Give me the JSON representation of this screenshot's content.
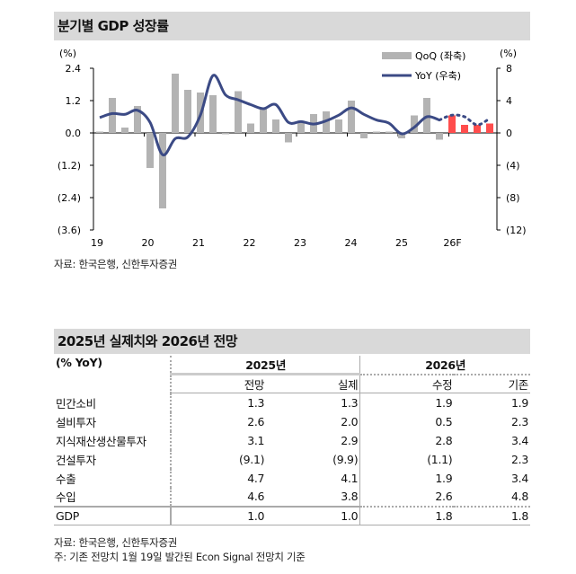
{
  "title1": "분기별 GDP 성장률",
  "source1": "자료: 한국은행, 신한투자증권",
  "chart_data": {
    "type": "bar+line",
    "title": "분기별 GDP 성장률",
    "left_unit": "(%)",
    "right_unit": "(%)",
    "left_ylim": [
      -3.6,
      2.4
    ],
    "left_ticks": [
      "2.4",
      "1.2",
      "0.0",
      "(1.2)",
      "(2.4)",
      "(3.6)"
    ],
    "right_ylim": [
      -12,
      8
    ],
    "right_ticks": [
      "8",
      "4",
      "0",
      "(4)",
      "(8)",
      "(12)"
    ],
    "x_ticks": [
      "19",
      "20",
      "21",
      "22",
      "23",
      "24",
      "25",
      "26F"
    ],
    "legend": {
      "placement": "top-right",
      "qoq": "QoQ (좌축)",
      "yoy": "YoY (우축)"
    },
    "colors": {
      "qoq": "#b3b3b3",
      "forecast": "#ff4d4d",
      "yoy": "#3b4a85"
    },
    "quarters": [
      "19Q1",
      "19Q2",
      "19Q3",
      "19Q4",
      "20Q1",
      "20Q2",
      "20Q3",
      "20Q4",
      "21Q1",
      "21Q2",
      "21Q3",
      "21Q4",
      "22Q1",
      "22Q2",
      "22Q3",
      "22Q4",
      "23Q1",
      "23Q2",
      "23Q3",
      "23Q4",
      "24Q1",
      "24Q2",
      "24Q3",
      "24Q4",
      "25Q1",
      "25Q2",
      "25Q3",
      "25Q4",
      "26Q1",
      "26Q2",
      "26Q3",
      "26Q4"
    ],
    "series": [
      {
        "name": "QoQ (좌축)",
        "axis": "left",
        "values": [
          0.05,
          1.3,
          0.2,
          1.0,
          -1.3,
          -2.8,
          2.2,
          1.6,
          1.5,
          1.4,
          -0.05,
          1.55,
          0.35,
          0.9,
          0.5,
          -0.35,
          0.4,
          0.7,
          0.8,
          0.5,
          1.2,
          -0.2,
          0.05,
          0.05,
          -0.2,
          0.65,
          1.3,
          -0.25,
          0.65,
          0.3,
          0.3,
          0.35
        ],
        "forecast_from": "26Q1"
      },
      {
        "name": "YoY (우축)",
        "axis": "right",
        "values": [
          1.9,
          2.4,
          2.3,
          2.8,
          1.3,
          -2.7,
          -0.7,
          -0.5,
          2.2,
          7.1,
          4.7,
          4.1,
          3.5,
          3.0,
          3.5,
          1.3,
          1.4,
          1.1,
          1.5,
          2.2,
          3.1,
          2.3,
          1.6,
          1.2,
          -0.1,
          0.7,
          2.0,
          1.6,
          2.2,
          2.0,
          1.0,
          1.8
        ],
        "forecast_from": "26Q1"
      }
    ]
  },
  "title2": "2025년 실제치와 2026년 전망",
  "table": {
    "unit": "(% YoY)",
    "groups": [
      "2025년",
      "2026년"
    ],
    "subheaders": [
      "전망",
      "실제",
      "수정",
      "기존"
    ],
    "rows": [
      {
        "label": "민간소비",
        "values": [
          "1.3",
          "1.3",
          "1.9",
          "1.9"
        ]
      },
      {
        "label": "설비투자",
        "values": [
          "2.6",
          "2.0",
          "0.5",
          "2.3"
        ]
      },
      {
        "label": "지식재산생산물투자",
        "values": [
          "3.1",
          "2.9",
          "2.8",
          "3.4"
        ]
      },
      {
        "label": "건설투자",
        "values": [
          "(9.1)",
          "(9.9)",
          "(1.1)",
          "2.3"
        ]
      },
      {
        "label": "수출",
        "values": [
          "4.7",
          "4.1",
          "1.9",
          "3.4"
        ]
      },
      {
        "label": "수입",
        "values": [
          "4.6",
          "3.8",
          "2.6",
          "4.8"
        ]
      }
    ],
    "total": {
      "label": "GDP",
      "values": [
        "1.0",
        "1.0",
        "1.8",
        "1.8"
      ]
    }
  },
  "source2": "자료: 한국은행, 신한투자증권",
  "note": "주: 기존 전망치 1월 19일 발간된 Econ Signal 전망치 기준"
}
